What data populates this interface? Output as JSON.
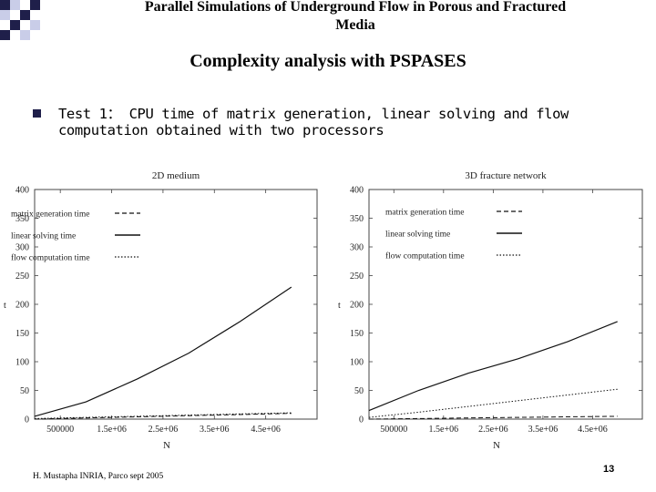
{
  "slide": {
    "header_title_line1": "Parallel Simulations of Underground Flow in Porous and Fractured",
    "header_title_line2": "Media",
    "title": "Complexity analysis with PSPASES",
    "bullet_lead": "Test 1",
    "bullet_text_line1": "： CPU time of matrix generation, linear solving and flow",
    "bullet_text_line2": "computation obtained with two processors",
    "footer": "H. Mustapha INRIA, Parco sept 2005",
    "page_number": "13"
  },
  "colors": {
    "accent_dark": "#1f1f4a",
    "accent_light": "#c9cde8"
  },
  "chart_data": [
    {
      "type": "line",
      "title": "2D medium",
      "xlabel": "N",
      "ylabel": "t",
      "xlim": [
        0,
        5500000
      ],
      "ylim": [
        0,
        400
      ],
      "x_ticks": [
        500000,
        1500000,
        2500000,
        3500000,
        4500000
      ],
      "x_tick_labels": [
        "500000",
        "1.5e+06",
        "2.5e+06",
        "3.5e+06",
        "4.5e+06"
      ],
      "y_ticks": [
        0,
        50,
        100,
        150,
        200,
        250,
        300,
        350,
        400
      ],
      "y_tick_labels": [
        "0",
        "50",
        "100",
        "150",
        "200",
        "250",
        "300",
        "350",
        "400"
      ],
      "legend_position": "top-left",
      "grid": false,
      "series": [
        {
          "name": "matrix generation time",
          "style": "dashed",
          "x": [
            0,
            1000000,
            2000000,
            3000000,
            4000000,
            5000000
          ],
          "y": [
            0,
            2,
            4,
            6,
            8,
            10
          ]
        },
        {
          "name": "linear solving time",
          "style": "solid",
          "x": [
            0,
            1000000,
            2000000,
            3000000,
            4000000,
            5000000
          ],
          "y": [
            5,
            30,
            70,
            115,
            170,
            230
          ]
        },
        {
          "name": "flow computation time",
          "style": "dotted",
          "x": [
            0,
            1000000,
            2000000,
            3000000,
            4000000,
            5000000
          ],
          "y": [
            1,
            3,
            5,
            7,
            9,
            11
          ]
        }
      ]
    },
    {
      "type": "line",
      "title": "3D fracture network",
      "xlabel": "N",
      "ylabel": "t",
      "xlim": [
        0,
        5500000
      ],
      "ylim": [
        0,
        400
      ],
      "x_ticks": [
        500000,
        1500000,
        2500000,
        3500000,
        4500000
      ],
      "x_tick_labels": [
        "500000",
        "1.5e+06",
        "2.5e+06",
        "3.5e+06",
        "4.5e+06"
      ],
      "y_ticks": [
        0,
        50,
        100,
        150,
        200,
        250,
        300,
        350,
        400
      ],
      "y_tick_labels": [
        "0",
        "50",
        "100",
        "150",
        "200",
        "250",
        "300",
        "350",
        "400"
      ],
      "legend_position": "top-left",
      "grid": false,
      "series": [
        {
          "name": "matrix generation time",
          "style": "dashed",
          "x": [
            0,
            1000000,
            2000000,
            3000000,
            4000000,
            5000000
          ],
          "y": [
            0,
            1,
            2,
            3,
            4,
            5
          ]
        },
        {
          "name": "linear solving time",
          "style": "solid",
          "x": [
            0,
            1000000,
            2000000,
            3000000,
            4000000,
            5000000
          ],
          "y": [
            15,
            50,
            80,
            105,
            135,
            170
          ]
        },
        {
          "name": "flow computation time",
          "style": "dotted",
          "x": [
            0,
            1000000,
            2000000,
            3000000,
            4000000,
            5000000
          ],
          "y": [
            3,
            12,
            22,
            32,
            42,
            52
          ]
        }
      ]
    }
  ]
}
